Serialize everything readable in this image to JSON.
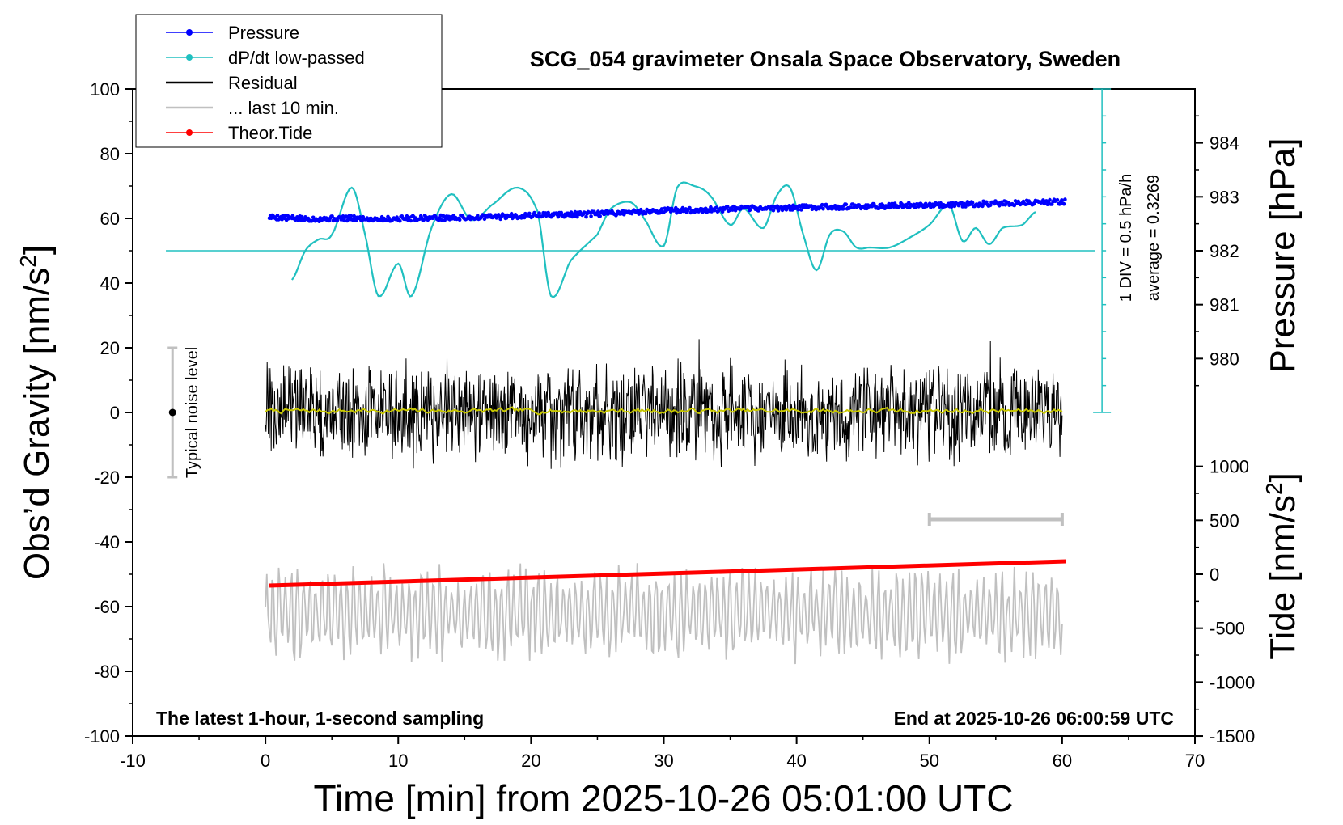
{
  "chart_data": {
    "type": "line",
    "title": "SCG_054 gravimeter Onsala Space Observatory, Sweden",
    "xlabel": "Time [min] from 2025-10-26 05:01:00 UTC",
    "ylabel_left_main": "Obs’d Gravity [nm/s",
    "ylabel_left_sup": "2",
    "ylabel_left_end": "]",
    "ylabel_right_pressure": "Pressure [hPa]",
    "ylabel_right_tide_main": "Tide [nm/s",
    "ylabel_right_tide_sup": "2",
    "ylabel_right_tide_end": "]",
    "xlim": [
      -10,
      70
    ],
    "ylim": [
      -100,
      100
    ],
    "x_ticks": [
      "-10",
      "0",
      "10",
      "20",
      "30",
      "40",
      "50",
      "60",
      "70"
    ],
    "y_ticks": [
      "100",
      "80",
      "60",
      "40",
      "20",
      "0",
      "-20",
      "-40",
      "-60",
      "-80",
      "-100"
    ],
    "pressure_axis": {
      "ticks": [
        "984",
        "983",
        "982",
        "981",
        "980"
      ],
      "values": [
        984,
        983,
        982,
        981,
        980
      ],
      "reference_gravity_value_at_982": 50,
      "gravity_units_per_hPa": 16.67
    },
    "tide_axis": {
      "ticks": [
        "1000",
        "500",
        "0",
        "-500",
        "-1000",
        "-1500"
      ],
      "values": [
        1000,
        500,
        0,
        -500,
        -1000,
        -1500
      ],
      "gravity_value_at_0": -50,
      "gravity_units_per_500": 16.67
    },
    "legend": {
      "placement": "top-left",
      "entries": [
        {
          "label": "Pressure",
          "color": "#0000ff",
          "marker": true
        },
        {
          "label": "dP/dt low-passed",
          "color": "#20c0c0",
          "marker": true
        },
        {
          "label": "Residual",
          "color": "#000000",
          "marker": false
        },
        {
          "label": "... last 10 min.",
          "color": "#c0c0c0",
          "marker": false
        },
        {
          "label": "Theor.Tide",
          "color": "#ff0000",
          "marker": true
        }
      ]
    },
    "annotations": {
      "bottom_left": "The latest 1-hour, 1-second sampling",
      "bottom_right": "End at 2025-10-26 06:00:59 UTC",
      "noise_label": "Typical noise level",
      "scale_div": "1 DIV = 0.5 hPa/h",
      "scale_avg": "average = 0.3269"
    },
    "noise_bar": {
      "x": -7,
      "y_center": 0,
      "y_range": [
        -20,
        20
      ]
    },
    "last10_bar": {
      "x_range": [
        50,
        60
      ],
      "y": -33
    },
    "dpdt_reference_level": 50,
    "dpdt_scale_bar": {
      "x": 63,
      "y_range": [
        0,
        100
      ]
    },
    "series": [
      {
        "name": "Pressure",
        "color": "#0000ff",
        "x": [
          0.3,
          3,
          6,
          9,
          12,
          15,
          18,
          21,
          24,
          27,
          30,
          33,
          36,
          39,
          42,
          45,
          48,
          51,
          54,
          57,
          60.3
        ],
        "y": [
          60.5,
          59.8,
          60.0,
          59.8,
          60.2,
          60.2,
          60.6,
          61.1,
          61.2,
          61.8,
          62.4,
          62.6,
          63.0,
          63.2,
          63.6,
          63.6,
          64.0,
          64.2,
          64.5,
          64.8,
          65.2
        ]
      },
      {
        "name": "dP/dt low-passed",
        "color": "#20c0c0",
        "x": [
          2,
          3,
          4,
          5,
          6.5,
          7.5,
          8.5,
          10,
          11,
          12.5,
          14,
          15.5,
          17,
          19,
          20.5,
          21.5,
          23,
          25,
          26,
          27.5,
          28.5,
          30,
          31,
          32.3,
          33.5,
          35,
          36,
          37.5,
          38.5,
          39.5,
          40.5,
          41.5,
          42.5,
          43.5,
          44.5,
          45.5,
          47,
          48.5,
          50,
          51.5,
          52.5,
          53.5,
          54.5,
          55.5,
          57,
          58
        ],
        "y": [
          41,
          50,
          53.5,
          55,
          69.5,
          55,
          36,
          46,
          36,
          57,
          67.5,
          59.5,
          64,
          69.5,
          62,
          36,
          47,
          55,
          63,
          65,
          60,
          51.5,
          69.5,
          70,
          67,
          58,
          63,
          57,
          67,
          69.5,
          55,
          44,
          55,
          56,
          51,
          51,
          51,
          54,
          58,
          64,
          53,
          57,
          52,
          57,
          58,
          62
        ]
      },
      {
        "name": "Residual",
        "color": "#000000",
        "x_range": [
          0,
          60
        ],
        "typical_amplitude": 12,
        "extremes": {
          "max": 25,
          "min": -28
        }
      },
      {
        "name": "... last 10 min.",
        "color": "#c0c0c0",
        "x_range": [
          0,
          60
        ],
        "center": -62,
        "range": [
          -81,
          -41
        ]
      },
      {
        "name": "Theor.Tide",
        "color": "#ff0000",
        "x": [
          0.3,
          60.3
        ],
        "y": [
          -53.5,
          -46
        ]
      },
      {
        "name": "Residual smoothed",
        "color": "#c8c800",
        "x_range": [
          0,
          60
        ],
        "center": 0.5
      }
    ]
  }
}
